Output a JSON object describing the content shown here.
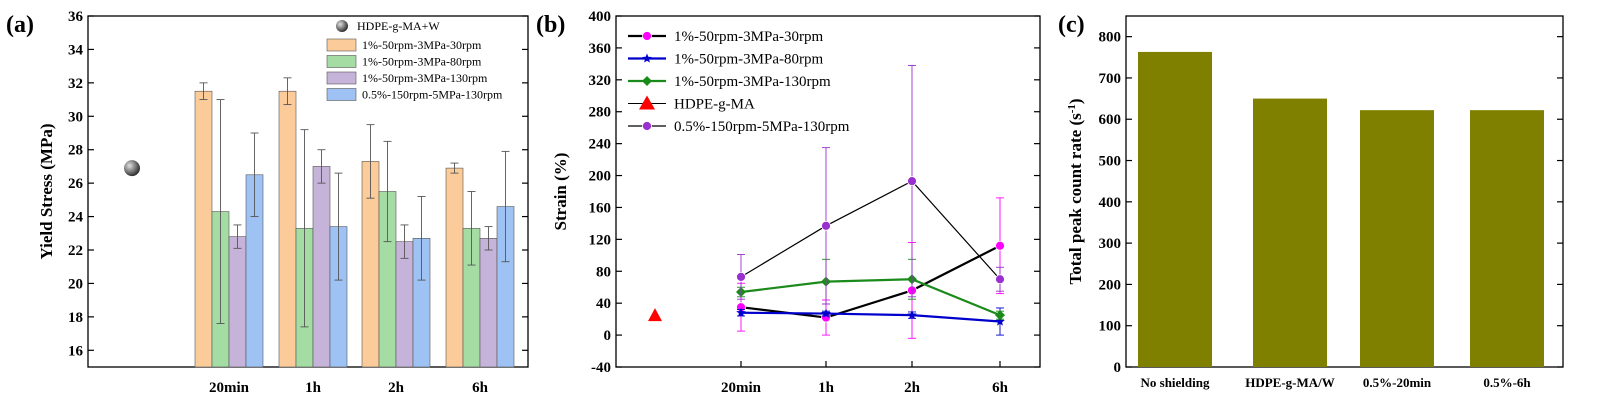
{
  "chart_data": [
    {
      "panel": "(a)",
      "type": "bar",
      "ylabel": "Yield Stress (MPa)",
      "ylim": [
        15,
        36
      ],
      "yticks": [
        16,
        18,
        20,
        22,
        24,
        26,
        28,
        30,
        32,
        34,
        36
      ],
      "categories": [
        "20min",
        "1h",
        "2h",
        "6h"
      ],
      "reference": {
        "name": "HDPE-g-MA+W",
        "value": 26.9,
        "err": 0.3
      },
      "series": [
        {
          "name": "1%-50rpm-3MPa-30rpm",
          "color": "#fbcc9a",
          "values": [
            31.5,
            31.5,
            27.3,
            26.9
          ],
          "err": [
            0.5,
            0.8,
            2.2,
            0.3
          ]
        },
        {
          "name": "1%-50rpm-3MPa-80rpm",
          "color": "#a4dca4",
          "values": [
            24.3,
            23.3,
            25.5,
            23.3
          ],
          "err": [
            6.7,
            5.9,
            3.0,
            2.2
          ]
        },
        {
          "name": "1%-50rpm-3MPa-130rpm",
          "color": "#c6b3da",
          "values": [
            22.8,
            27.0,
            22.5,
            22.7
          ],
          "err": [
            0.7,
            1.0,
            1.0,
            0.7
          ]
        },
        {
          "name": "0.5%-150rpm-5MPa-130rpm",
          "color": "#9ec2f3",
          "values": [
            26.5,
            23.4,
            22.7,
            24.6
          ],
          "err": [
            2.5,
            3.2,
            2.5,
            3.3
          ]
        }
      ]
    },
    {
      "panel": "(b)",
      "type": "line",
      "ylabel": "Strain (%)",
      "ylim": [
        -40,
        400
      ],
      "yticks": [
        -40,
        0,
        40,
        80,
        120,
        160,
        200,
        240,
        280,
        320,
        360,
        400
      ],
      "categories": [
        "20min",
        "1h",
        "2h",
        "6h"
      ],
      "reference": {
        "name": "HDPE-g-MA",
        "value": 25,
        "color": "#ff0000"
      },
      "series": [
        {
          "name": "1%-50rpm-3MPa-30rpm",
          "color": "#ff00ff",
          "line_color": "#000000",
          "marker": "circle",
          "values": [
            35,
            22,
            56,
            112
          ],
          "err": [
            30,
            22,
            60,
            60
          ]
        },
        {
          "name": "1%-50rpm-3MPa-80rpm",
          "color": "#0000cc",
          "line_color": "#0000cc",
          "marker": "star",
          "values": [
            28,
            27,
            25,
            17
          ],
          "err": [
            4,
            3,
            4,
            17
          ]
        },
        {
          "name": "1%-50rpm-3MPa-130rpm",
          "color": "#1a8a1a",
          "line_color": "#1a8a1a",
          "marker": "diamond",
          "values": [
            54,
            67,
            70,
            25
          ],
          "err": [
            6,
            28,
            25,
            5
          ]
        },
        {
          "name": "0.5%-150rpm-5MPa-130rpm",
          "color": "#9a30d0",
          "line_color": "#000000",
          "marker": "circle",
          "values": [
            73,
            137,
            193,
            70
          ],
          "err": [
            28,
            98,
            145,
            15
          ]
        }
      ]
    },
    {
      "panel": "(c)",
      "type": "bar",
      "ylabel_main": "Total peak count rate (s",
      "ylabel_sup": "-1",
      "ylabel_close": ")",
      "ylim": [
        0,
        850
      ],
      "yticks": [
        0,
        100,
        200,
        300,
        400,
        500,
        600,
        700,
        800
      ],
      "categories": [
        "No shielding",
        "HDPE-g-MA/W",
        "0.5%-20min",
        "0.5%-6h"
      ],
      "values": [
        763,
        650,
        622,
        622
      ],
      "color": "#808000"
    }
  ]
}
